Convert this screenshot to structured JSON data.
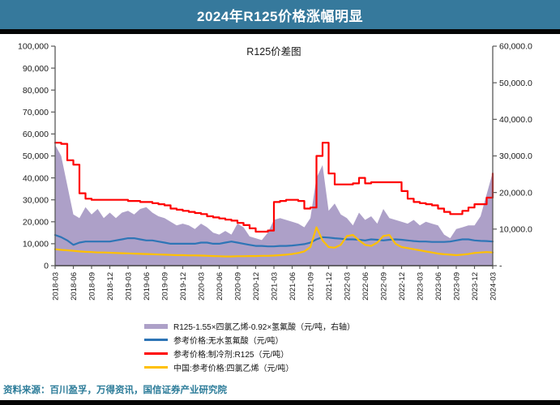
{
  "header": {
    "title": "2024年R125价格涨幅明显",
    "bg_color": "#36799c"
  },
  "chart_data": {
    "type": "area",
    "title": "R125价差图",
    "grid": false,
    "legend_position": "bottom",
    "left_axis": {
      "min": 0,
      "max": 100000,
      "step": 10000,
      "labels": [
        "0",
        "10,000",
        "20,000",
        "30,000",
        "40,000",
        "50,000",
        "60,000",
        "70,000",
        "80,000",
        "90,000",
        "100,000"
      ]
    },
    "right_axis": {
      "min": 0,
      "max": 60000,
      "step": 10000,
      "labels": [
        "-",
        "10,000.0",
        "20,000.0",
        "30,000.0",
        "40,000.0",
        "50,000.0",
        "60,000.0"
      ]
    },
    "x_ticks": [
      "2018-03",
      "2018-06",
      "2018-09",
      "2018-12",
      "2019-03",
      "2019-06",
      "2019-09",
      "2019-12",
      "2020-03",
      "2020-06",
      "2020-09",
      "2020-12",
      "2021-03",
      "2021-06",
      "2021-09",
      "2021-12",
      "2022-03",
      "2022-06",
      "2022-09",
      "2022-12",
      "2023-03",
      "2023-06",
      "2023-09",
      "2023-12",
      "2024-03"
    ],
    "x_monthly": [
      "2018-03",
      "2018-04",
      "2018-05",
      "2018-06",
      "2018-07",
      "2018-08",
      "2018-09",
      "2018-10",
      "2018-11",
      "2018-12",
      "2019-01",
      "2019-02",
      "2019-03",
      "2019-04",
      "2019-05",
      "2019-06",
      "2019-07",
      "2019-08",
      "2019-09",
      "2019-10",
      "2019-11",
      "2019-12",
      "2020-01",
      "2020-02",
      "2020-03",
      "2020-04",
      "2020-05",
      "2020-06",
      "2020-07",
      "2020-08",
      "2020-09",
      "2020-10",
      "2020-11",
      "2020-12",
      "2021-01",
      "2021-02",
      "2021-03",
      "2021-04",
      "2021-05",
      "2021-06",
      "2021-07",
      "2021-08",
      "2021-09",
      "2021-10",
      "2021-11",
      "2021-12",
      "2022-01",
      "2022-02",
      "2022-03",
      "2022-04",
      "2022-05",
      "2022-06",
      "2022-07",
      "2022-08",
      "2022-09",
      "2022-10",
      "2022-11",
      "2022-12",
      "2023-01",
      "2023-02",
      "2023-03",
      "2023-04",
      "2023-05",
      "2023-06",
      "2023-07",
      "2023-08",
      "2023-09",
      "2023-10",
      "2023-11",
      "2023-12",
      "2024-01",
      "2024-02",
      "2024-03"
    ],
    "series": [
      {
        "name": "R125-1.55×四氯乙烯-0.92×氢氟酸（元/吨，右轴）",
        "type": "area",
        "axis": "right",
        "color": "#ada0c8",
        "step": false,
        "values": [
          33000,
          30000,
          22000,
          14000,
          13000,
          16000,
          14000,
          15500,
          13000,
          14500,
          13000,
          14500,
          15000,
          14000,
          15500,
          16000,
          14500,
          13500,
          13000,
          12000,
          11000,
          11500,
          11000,
          10000,
          11500,
          10500,
          9000,
          8500,
          9500,
          8500,
          11500,
          10500,
          8000,
          7500,
          7000,
          9000,
          12500,
          13000,
          12500,
          12000,
          11500,
          10500,
          13000,
          24000,
          27500,
          15000,
          17000,
          14000,
          13000,
          11000,
          14500,
          12500,
          13500,
          11500,
          15500,
          13000,
          12500,
          12000,
          11500,
          12500,
          11000,
          12000,
          11500,
          11000,
          8500,
          7500,
          10000,
          10500,
          11000,
          11000,
          13500,
          19500,
          25500
        ]
      },
      {
        "name": "参考价格:无水氢氟酸（元/吨）",
        "type": "line",
        "axis": "left",
        "color": "#2e75b6",
        "step": false,
        "values": [
          14000,
          13000,
          11500,
          9500,
          10500,
          11000,
          11000,
          11000,
          11000,
          11000,
          11500,
          12000,
          12500,
          12500,
          12000,
          11500,
          11500,
          11000,
          10500,
          10000,
          10000,
          10000,
          10000,
          10000,
          10500,
          10500,
          10000,
          10000,
          10500,
          11000,
          10500,
          10000,
          9500,
          9000,
          9000,
          8800,
          8800,
          9000,
          9000,
          9200,
          9500,
          9800,
          10500,
          12000,
          13000,
          12800,
          12500,
          12300,
          12000,
          12000,
          11800,
          11500,
          12000,
          11800,
          11500,
          11800,
          12000,
          11800,
          11500,
          11200,
          11000,
          11000,
          10800,
          10800,
          10800,
          11000,
          11500,
          12000,
          12000,
          11500,
          11300,
          11200,
          11000
        ]
      },
      {
        "name": "参考价格:制冷剂:R125（元/吨）",
        "type": "line",
        "axis": "left",
        "color": "#fe0000",
        "step": true,
        "values": [
          56000,
          55500,
          48000,
          46000,
          33000,
          30500,
          30000,
          30000,
          30000,
          30000,
          30000,
          30000,
          29500,
          29500,
          29000,
          29000,
          28500,
          28000,
          27500,
          26000,
          25500,
          25000,
          24500,
          24000,
          23500,
          22500,
          22000,
          21500,
          21000,
          20500,
          19500,
          18500,
          17000,
          15500,
          15500,
          16000,
          29000,
          29500,
          30000,
          30000,
          29500,
          26000,
          26500,
          50000,
          56000,
          42000,
          37000,
          37000,
          37000,
          37500,
          40000,
          37500,
          38000,
          38000,
          38000,
          38000,
          38000,
          34000,
          30500,
          29000,
          28500,
          28000,
          27500,
          26000,
          24500,
          23500,
          23500,
          25000,
          26500,
          28000,
          28000,
          31000,
          42000
        ]
      },
      {
        "name": "中国:参考价格:四氯乙烯（元/吨）",
        "type": "line",
        "axis": "left",
        "color": "#ffc000",
        "step": false,
        "values": [
          7500,
          7200,
          7000,
          6800,
          6500,
          6300,
          6200,
          6000,
          6000,
          5900,
          5800,
          5700,
          5600,
          5500,
          5400,
          5300,
          5200,
          5100,
          5000,
          4900,
          4800,
          4800,
          4700,
          4700,
          4600,
          4500,
          4400,
          4300,
          4200,
          4200,
          4300,
          4300,
          4400,
          4400,
          4500,
          4500,
          4600,
          4800,
          5000,
          5300,
          5800,
          6500,
          8500,
          17500,
          11500,
          8500,
          8200,
          9500,
          13500,
          14000,
          11500,
          9500,
          9000,
          10500,
          13500,
          14000,
          10000,
          8500,
          8000,
          7500,
          7000,
          6500,
          6000,
          5500,
          5200,
          5000,
          4800,
          5000,
          5300,
          5800,
          6000,
          6200,
          6000
        ]
      }
    ],
    "axis_color": "#595959",
    "label_color": "#1a1a1a"
  },
  "source": {
    "text": "资料来源：百川盈孚，万得资讯，国信证券产业研究院"
  }
}
